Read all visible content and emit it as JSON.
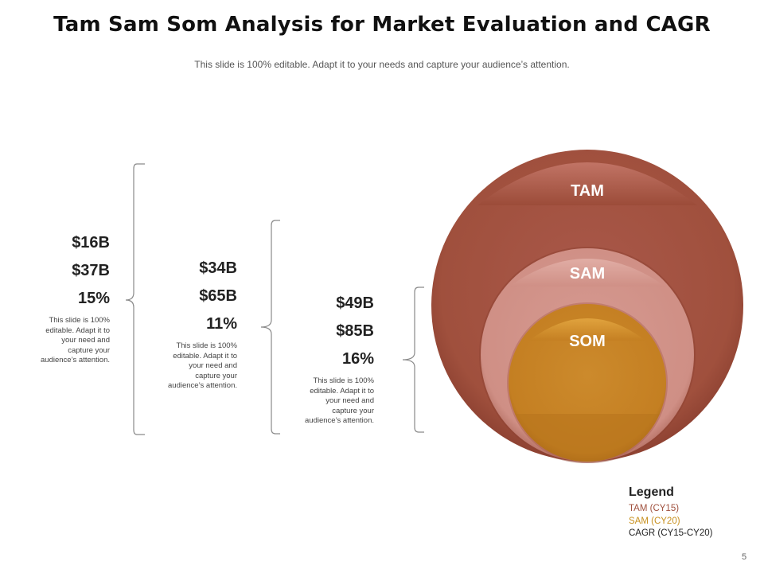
{
  "slide": {
    "title": "Tam Sam Som Analysis for Market Evaluation and CAGR",
    "subtitle": "This slide is 100% editable. Adapt it to your needs and capture your audience’s attention.",
    "page_number": "5"
  },
  "groups": [
    {
      "values": [
        "$16B",
        "$37B",
        "15%"
      ],
      "description": [
        "This slide is 100%",
        "editable. Adapt it to",
        "your need and",
        "capture your",
        "audience’s attention."
      ]
    },
    {
      "values": [
        "$34B",
        "$65B",
        "11%"
      ],
      "description": [
        "This slide is 100%",
        "editable. Adapt it to",
        "your need and",
        "capture your",
        "audience’s attention."
      ]
    },
    {
      "values": [
        "$49B",
        "$85B",
        "16%"
      ],
      "description": [
        "This slide is 100%",
        "editable. Adapt it to",
        "your need and",
        "capture your",
        "audience’s attention."
      ]
    }
  ],
  "circles": {
    "tam_label": "TAM",
    "sam_label": "SAM",
    "som_label": "SOM",
    "tam_color": "#A0503D",
    "sam_color": "#CF8F85",
    "som_color": "#C47F22"
  },
  "legend": {
    "title": "Legend",
    "items": [
      {
        "label": "TAM (CY15)",
        "color": "#A0503D"
      },
      {
        "label": "SAM (CY20)",
        "color": "#C8901E"
      },
      {
        "label": "CAGR (CY15-CY20)",
        "color": "#222222"
      }
    ]
  }
}
